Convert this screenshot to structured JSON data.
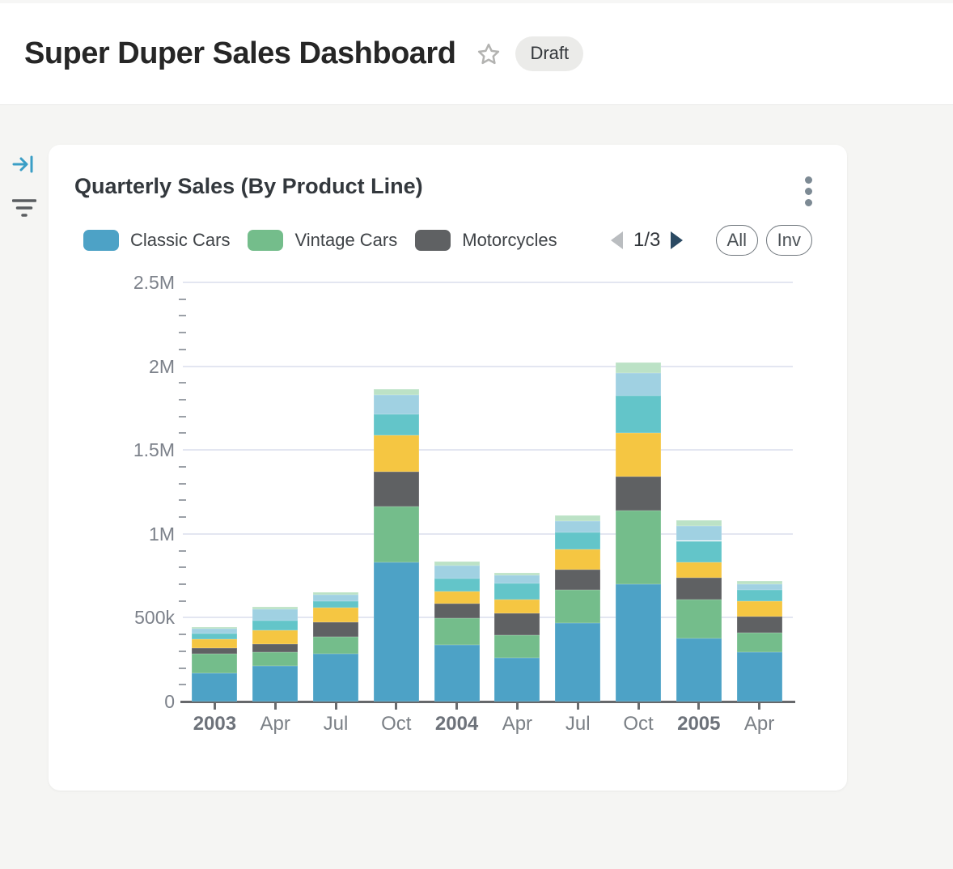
{
  "header": {
    "title": "Super Duper Sales Dashboard",
    "status_badge": "Draft"
  },
  "sidebar": {
    "collapse_icon": "arrow-to-line",
    "filter_icon": "filter-lines",
    "accent_color": "#3a9ec6"
  },
  "card": {
    "title": "Quarterly Sales (By Product Line)",
    "menu_icon": "kebab-vertical",
    "legend": {
      "items": [
        {
          "label": "Classic Cars",
          "color": "#4da2c6"
        },
        {
          "label": "Vintage Cars",
          "color": "#74bd8b"
        },
        {
          "label": "Motorcycles",
          "color": "#5f6163"
        }
      ],
      "pager": {
        "label": "1/3",
        "prev_enabled": false,
        "next_enabled": true
      },
      "select_all_label": "All",
      "invert_label": "Inv"
    }
  },
  "chart_data": {
    "type": "bar",
    "stacked": true,
    "title": "Quarterly Sales (By Product Line)",
    "categories": [
      "2003",
      "Apr",
      "Jul",
      "Oct",
      "2004",
      "Apr",
      "Jul",
      "Oct",
      "2005",
      "Apr"
    ],
    "bold_categories": [
      "2003",
      "2004",
      "2005"
    ],
    "ylim": [
      0,
      2500000
    ],
    "y_major_interval": 500000,
    "y_minor_interval": 100000,
    "y_major_tick_labels": [
      "0",
      "500k",
      "1M",
      "1.5M",
      "2M",
      "2.5M"
    ],
    "grid": "horizontal-major",
    "legend_position": "top",
    "legend_pages": 3,
    "series": [
      {
        "name": "Classic Cars",
        "color": "#4da2c6",
        "in_visible_legend": true,
        "values": [
          170000,
          212000,
          283000,
          829000,
          338000,
          262000,
          470000,
          699000,
          378000,
          295000
        ]
      },
      {
        "name": "Vintage Cars",
        "color": "#74bd8b",
        "in_visible_legend": true,
        "values": [
          115000,
          84000,
          102000,
          333000,
          161000,
          132000,
          197000,
          442000,
          229000,
          115000
        ]
      },
      {
        "name": "Motorcycles",
        "color": "#5f6163",
        "in_visible_legend": true,
        "values": [
          35000,
          47000,
          87000,
          210000,
          85000,
          132000,
          120000,
          202000,
          133000,
          97000
        ]
      },
      {
        "name": "",
        "color_name": "yellow",
        "color": "#f5c642",
        "in_visible_legend": false,
        "values": [
          50000,
          82000,
          86000,
          217000,
          73000,
          81000,
          118000,
          261000,
          89000,
          93000
        ]
      },
      {
        "name": "",
        "color_name": "teal",
        "color": "#63c5c9",
        "in_visible_legend": false,
        "values": [
          35000,
          60000,
          39000,
          122000,
          75000,
          96000,
          103000,
          222000,
          129000,
          68000
        ]
      },
      {
        "name": "",
        "color_name": "light-blue",
        "color": "#a0d1e2",
        "in_visible_legend": false,
        "values": [
          28000,
          63000,
          40000,
          119000,
          77000,
          49000,
          69000,
          132000,
          91000,
          32000
        ]
      },
      {
        "name": "",
        "color_name": "light-green",
        "color": "#bce2c6",
        "in_visible_legend": false,
        "values": [
          12000,
          16000,
          16000,
          34000,
          28000,
          16000,
          32000,
          64000,
          30000,
          21000
        ]
      }
    ]
  }
}
